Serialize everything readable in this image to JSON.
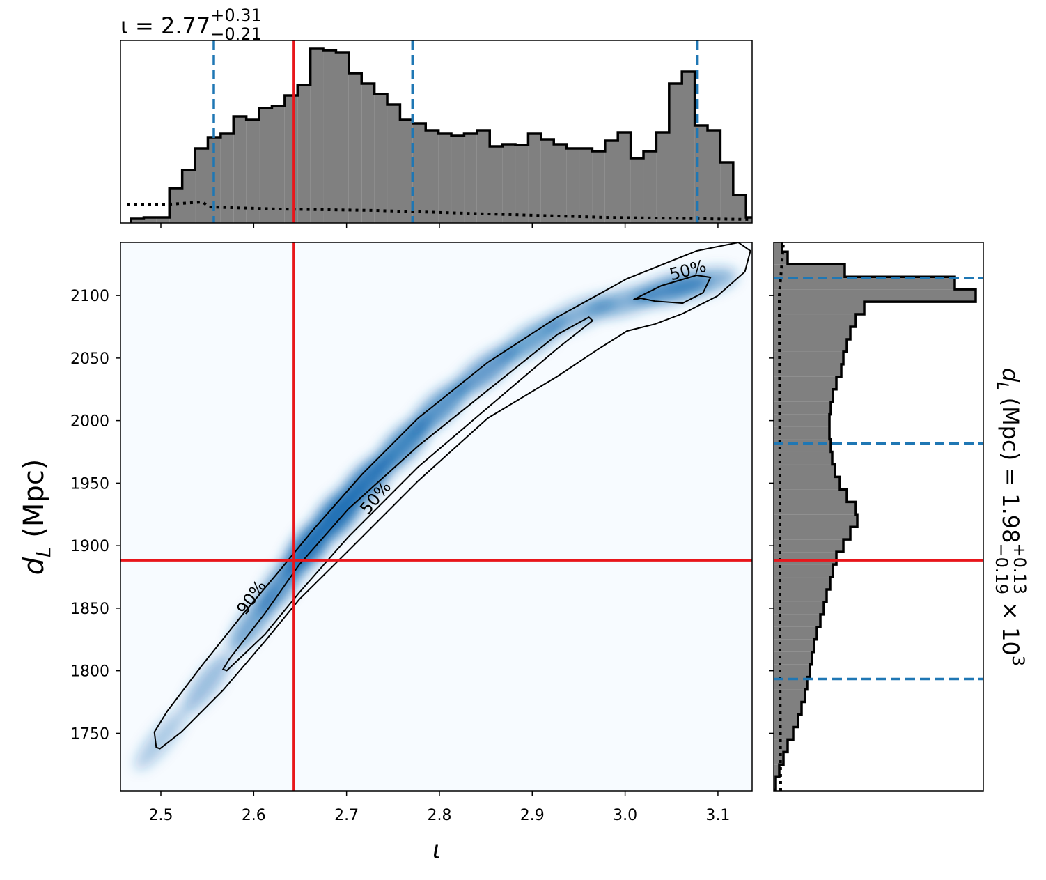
{
  "chart_data": [
    {
      "type": "histogram",
      "orientation": "vertical",
      "title": {
        "main": "ι = 2.77",
        "upper": "+0.31",
        "lower": "−0.21"
      },
      "bins": [
        2.4678,
        2.4816,
        2.4954,
        2.5092,
        2.523,
        2.5368,
        2.5506,
        2.5644,
        2.5782,
        2.592,
        2.6058,
        2.6196,
        2.6334,
        2.6472,
        2.661,
        2.6748,
        2.6886,
        2.7024,
        2.7162,
        2.73,
        2.7438,
        2.7576,
        2.7714,
        2.7852,
        2.799,
        2.8128,
        2.8266,
        2.8404,
        2.8542,
        2.868,
        2.8818,
        2.8956,
        2.9094,
        2.9232,
        2.937,
        2.9508,
        2.9646,
        2.9784,
        2.9922,
        3.006,
        3.0198,
        3.0336,
        3.0474,
        3.0612,
        3.075,
        3.0888,
        3.1026,
        3.1164,
        3.1302,
        3.144
      ],
      "counts": [
        6,
        8,
        8,
        50,
        76,
        107,
        123,
        128,
        153,
        148,
        165,
        168,
        183,
        198,
        250,
        248,
        245,
        215,
        200,
        185,
        170,
        148,
        143,
        133,
        128,
        125,
        128,
        133,
        110,
        113,
        112,
        128,
        120,
        113,
        107,
        107,
        103,
        118,
        130,
        93,
        103,
        130,
        200,
        217,
        140,
        133,
        87,
        40,
        8
      ],
      "color": "#808080",
      "xlim": [
        2.4565,
        3.1368
      ],
      "ylim": [
        0,
        262
      ],
      "xticks": [
        2.5,
        2.6,
        2.7,
        2.8,
        2.9,
        3.0,
        3.1
      ],
      "prior": {
        "x": [
          2.464,
          2.51,
          2.545,
          2.552,
          2.627,
          2.732,
          2.852,
          2.979,
          3.137
        ],
        "y": [
          27,
          27,
          30,
          23,
          20,
          18,
          13,
          8,
          5
        ]
      },
      "quantiles": [
        2.557,
        2.771,
        3.078
      ],
      "quantile_color": "#1f77b4",
      "truth": 2.643,
      "truth_color": "#e8161b"
    },
    {
      "type": "density2d",
      "xlabel": "ι",
      "ylabel": {
        "main": "d",
        "sub": "L",
        "rest": " (Mpc)"
      },
      "xlim": [
        2.4565,
        3.1368
      ],
      "ylim": [
        1704,
        2142.4
      ],
      "xticks": [
        2.5,
        2.6,
        2.7,
        2.8,
        2.9,
        {
          "value": 3.0,
          "label": "3.0"
        },
        3.1
      ],
      "yticks": [
        1750,
        1800,
        1850,
        1900,
        1950,
        2000,
        2050,
        2100
      ],
      "color": "#2171b5",
      "density": {
        "x": [
          2.5,
          2.55,
          2.6,
          2.63,
          2.66,
          2.69,
          2.72,
          2.76,
          2.8,
          2.85,
          2.9,
          2.95,
          3.0,
          3.05,
          3.08
        ],
        "y": [
          1745,
          1790,
          1840,
          1870,
          1900,
          1925,
          1950,
          1980,
          2010,
          2040,
          2065,
          2085,
          2095,
          2105,
          2110
        ],
        "intensity": [
          0.1,
          0.2,
          0.35,
          0.5,
          0.75,
          0.9,
          0.7,
          0.6,
          0.5,
          0.45,
          0.4,
          0.3,
          0.3,
          0.45,
          0.3
        ]
      },
      "contours": [
        {
          "level": "90%",
          "x": [
            2.495,
            2.493,
            2.507,
            2.544,
            2.589,
            2.627,
            2.664,
            2.717,
            2.777,
            2.852,
            2.927,
            3.002,
            3.077,
            3.122,
            3.135,
            3.129,
            3.099,
            3.062,
            3.032,
            3.002,
            2.972,
            2.927,
            2.852,
            2.777,
            2.702,
            2.649,
            2.612,
            2.567,
            2.522,
            2.499
          ],
          "y": [
            1738.8,
            1751,
            1767.8,
            1804,
            1845.8,
            1879.3,
            1912.7,
            1957.3,
            2001.9,
            2046.5,
            2082.7,
            2113.4,
            2135.7,
            2142.4,
            2135.7,
            2119,
            2099.4,
            2085.5,
            2077.1,
            2071.6,
            2057.6,
            2035.3,
            2001.9,
            1951.7,
            1896,
            1857,
            1823.5,
            1784.5,
            1751,
            1737.7
          ]
        },
        {
          "level": "50%",
          "x": [
            2.567,
            2.574,
            2.612,
            2.649,
            2.702,
            2.777,
            2.852,
            2.927,
            2.961,
            2.965,
            2.927,
            2.852,
            2.777,
            2.702,
            2.649,
            2.612,
            2.571
          ],
          "y": [
            1801.2,
            1809.6,
            1845.8,
            1884.8,
            1929.4,
            1979.6,
            2024.2,
            2068.8,
            2082.7,
            2079.9,
            2057.6,
            2010.3,
            1962.9,
            1907.1,
            1862.5,
            1829,
            1800.1
          ]
        },
        {
          "level": "50%",
          "x": [
            3.009,
            3.039,
            3.077,
            3.092,
            3.084,
            3.062,
            3.032,
            3.017
          ],
          "y": [
            2096.7,
            2107.8,
            2116.2,
            2114.5,
            2102.2,
            2093.9,
            2095.5,
            2097.8
          ]
        }
      ],
      "truth": {
        "x": 2.643,
        "y": 1888.2
      },
      "truth_color": "#e8161b"
    },
    {
      "type": "histogram",
      "orientation": "horizontal",
      "title": {
        "main": "d",
        "sub": "L",
        "rest": " (Mpc) = 1.98",
        "upper": "+0.13",
        "lower": "−0.19",
        "tail": " × 10",
        "power": "3"
      },
      "bins": [
        1705,
        1715,
        1725,
        1735,
        1745,
        1755,
        1765,
        1775,
        1785,
        1795,
        1805,
        1815,
        1825,
        1835,
        1845,
        1855,
        1865,
        1875,
        1885,
        1895,
        1905,
        1915,
        1925,
        1935,
        1945,
        1955,
        1965,
        1975,
        1985,
        1995,
        2005,
        2015,
        2025,
        2035,
        2045,
        2055,
        2065,
        2075,
        2085,
        2095,
        2105,
        2115,
        2125,
        2135,
        2145
      ],
      "counts": [
        3,
        8,
        14,
        20,
        28,
        35,
        40,
        45,
        48,
        52,
        55,
        58,
        62,
        67,
        72,
        76,
        81,
        85,
        90,
        100,
        110,
        120,
        118,
        105,
        95,
        88,
        84,
        82,
        80,
        80,
        82,
        85,
        90,
        97,
        100,
        105,
        110,
        118,
        130,
        290,
        260,
        102,
        20,
        12
      ],
      "color": "#808080",
      "xlim": [
        0,
        301
      ],
      "ylim": [
        1704,
        2142.4
      ],
      "yticks": [
        1750,
        1800,
        1850,
        1900,
        1950,
        2000,
        2050,
        2100
      ],
      "prior": {
        "x": [
          10,
          9,
          9,
          8,
          14
        ],
        "y": [
          1704,
          1800,
          1950,
          2100,
          2142
        ]
      },
      "quantiles": [
        2113.9,
        1981.8,
        1793.4
      ],
      "quantile_color": "#1f77b4",
      "truth": 1888.2,
      "truth_color": "#e8161b"
    }
  ]
}
